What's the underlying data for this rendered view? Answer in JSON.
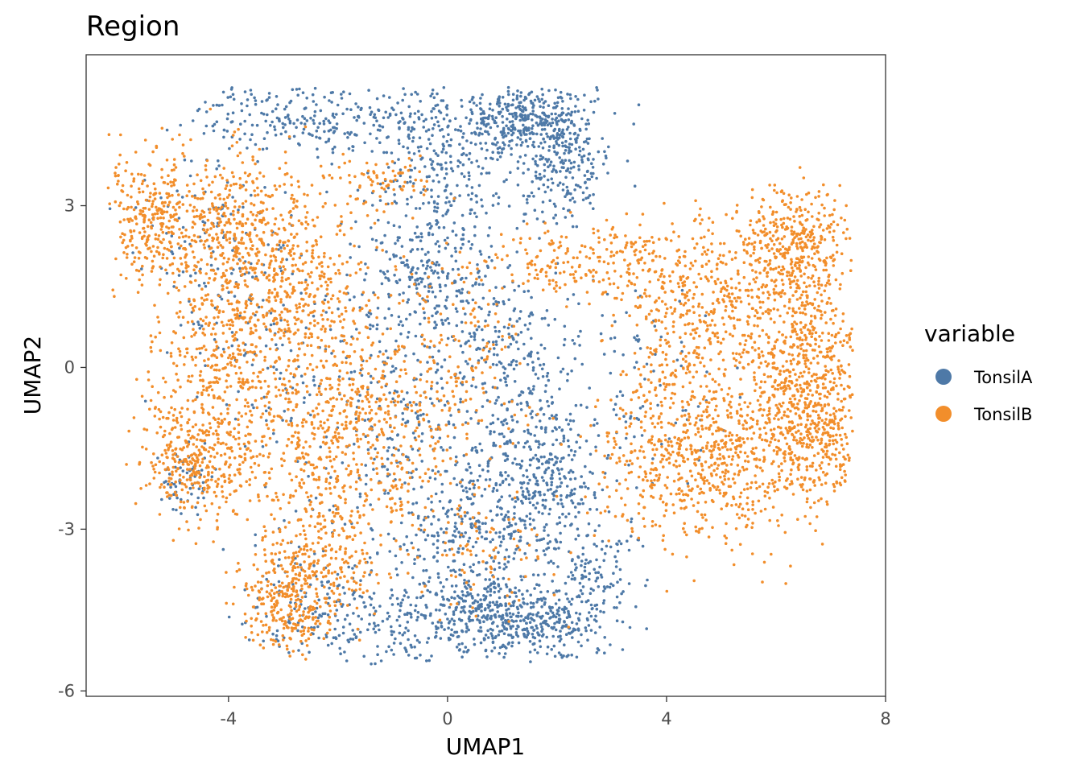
{
  "chart_data": {
    "type": "scatter",
    "title": "Region",
    "xlabel": "UMAP1",
    "ylabel": "UMAP2",
    "xlim": [
      -6.6,
      8.0
    ],
    "ylim": [
      -6.1,
      5.8
    ],
    "x_ticks": [
      {
        "value": -4,
        "label": "-4"
      },
      {
        "value": 0,
        "label": "0"
      },
      {
        "value": 4,
        "label": "4"
      },
      {
        "value": 8,
        "label": "8"
      }
    ],
    "y_ticks": [
      {
        "value": -6,
        "label": "-6"
      },
      {
        "value": -3,
        "label": "-3"
      },
      {
        "value": 0,
        "label": "0"
      },
      {
        "value": 3,
        "label": "3"
      }
    ],
    "grid": false,
    "legend": {
      "title": "variable",
      "placement": "right",
      "entries": [
        {
          "name": "TonsilA",
          "color": "#4e79a7"
        },
        {
          "name": "TonsilB",
          "color": "#f28e2b"
        }
      ]
    },
    "series": [
      {
        "name": "TonsilA",
        "color": "#4e79a7",
        "clusters": [
          {
            "cx": 1.4,
            "cy": 4.6,
            "sx": 0.65,
            "sy": 0.35,
            "weight": 360
          },
          {
            "cx": 2.1,
            "cy": 3.9,
            "sx": 0.45,
            "sy": 0.6,
            "weight": 240
          },
          {
            "cx": -2.8,
            "cy": 4.7,
            "sx": 0.9,
            "sy": 0.35,
            "weight": 220
          },
          {
            "cx": -0.6,
            "cy": 4.5,
            "sx": 0.8,
            "sy": 0.45,
            "weight": 160
          },
          {
            "cx": 0.2,
            "cy": 3.4,
            "sx": 0.6,
            "sy": 0.55,
            "weight": 150
          },
          {
            "cx": -0.3,
            "cy": 1.9,
            "sx": 0.55,
            "sy": 0.7,
            "weight": 230
          },
          {
            "cx": 1.0,
            "cy": 0.2,
            "sx": 0.8,
            "sy": 0.8,
            "weight": 260
          },
          {
            "cx": 1.8,
            "cy": -1.6,
            "sx": 0.55,
            "sy": 0.9,
            "weight": 220
          },
          {
            "cx": 1.1,
            "cy": -2.5,
            "sx": 0.9,
            "sy": 0.6,
            "weight": 240
          },
          {
            "cx": 0.8,
            "cy": -4.6,
            "sx": 0.6,
            "sy": 0.35,
            "weight": 300
          },
          {
            "cx": 1.9,
            "cy": -4.7,
            "sx": 0.55,
            "sy": 0.35,
            "weight": 220
          },
          {
            "cx": 2.6,
            "cy": -3.7,
            "sx": 0.4,
            "sy": 0.5,
            "weight": 120
          },
          {
            "cx": -1.0,
            "cy": -4.7,
            "sx": 0.9,
            "sy": 0.5,
            "weight": 190
          },
          {
            "cx": 0.3,
            "cy": -3.4,
            "sx": 0.6,
            "sy": 0.6,
            "weight": 160
          },
          {
            "cx": -4.8,
            "cy": -2.1,
            "sx": 0.25,
            "sy": 0.3,
            "weight": 60
          },
          {
            "cx": -2.0,
            "cy": 0.5,
            "sx": 1.2,
            "sy": 1.2,
            "weight": 220
          },
          {
            "cx": -4.2,
            "cy": 2.2,
            "sx": 0.7,
            "sy": 0.9,
            "weight": 130
          },
          {
            "cx": -2.6,
            "cy": -4.2,
            "sx": 0.6,
            "sy": 0.6,
            "weight": 110
          },
          {
            "cx": -0.7,
            "cy": -1.5,
            "sx": 0.8,
            "sy": 0.8,
            "weight": 150
          },
          {
            "cx": 3.8,
            "cy": -0.5,
            "sx": 0.7,
            "sy": 1.0,
            "weight": 70
          }
        ]
      },
      {
        "name": "TonsilB",
        "color": "#f28e2b",
        "clusters": [
          {
            "cx": -5.4,
            "cy": 2.8,
            "sx": 0.45,
            "sy": 0.55,
            "weight": 260
          },
          {
            "cx": -3.8,
            "cy": 2.6,
            "sx": 0.8,
            "sy": 0.7,
            "weight": 480
          },
          {
            "cx": -3.0,
            "cy": 1.0,
            "sx": 0.9,
            "sy": 0.8,
            "weight": 500
          },
          {
            "cx": -4.4,
            "cy": -0.6,
            "sx": 0.6,
            "sy": 0.9,
            "weight": 300
          },
          {
            "cx": -4.6,
            "cy": -1.9,
            "sx": 0.5,
            "sy": 0.5,
            "weight": 250
          },
          {
            "cx": -2.3,
            "cy": -1.3,
            "sx": 0.9,
            "sy": 0.9,
            "weight": 420
          },
          {
            "cx": -2.9,
            "cy": -4.3,
            "sx": 0.45,
            "sy": 0.5,
            "weight": 300
          },
          {
            "cx": -2.2,
            "cy": -3.5,
            "sx": 0.6,
            "sy": 0.6,
            "weight": 200
          },
          {
            "cx": -1.2,
            "cy": 3.4,
            "sx": 0.45,
            "sy": 0.25,
            "weight": 80
          },
          {
            "cx": -1.0,
            "cy": -1.0,
            "sx": 0.8,
            "sy": 0.9,
            "weight": 220
          },
          {
            "cx": 0.3,
            "cy": 0.5,
            "sx": 0.6,
            "sy": 0.9,
            "weight": 130
          },
          {
            "cx": 2.5,
            "cy": 2.0,
            "sx": 0.8,
            "sy": 0.3,
            "weight": 180
          },
          {
            "cx": 4.8,
            "cy": 1.6,
            "sx": 0.9,
            "sy": 0.6,
            "weight": 300
          },
          {
            "cx": 6.3,
            "cy": 2.2,
            "sx": 0.6,
            "sy": 0.6,
            "weight": 380
          },
          {
            "cx": 6.4,
            "cy": 0.0,
            "sx": 0.65,
            "sy": 0.9,
            "weight": 600
          },
          {
            "cx": 5.0,
            "cy": -1.8,
            "sx": 0.9,
            "sy": 0.8,
            "weight": 560
          },
          {
            "cx": 6.8,
            "cy": -1.2,
            "sx": 0.4,
            "sy": 0.6,
            "weight": 220
          },
          {
            "cx": 3.6,
            "cy": -1.5,
            "sx": 0.5,
            "sy": 0.9,
            "weight": 160
          },
          {
            "cx": 4.3,
            "cy": 0.4,
            "sx": 0.6,
            "sy": 0.7,
            "weight": 180
          },
          {
            "cx": 0.7,
            "cy": -3.4,
            "sx": 0.6,
            "sy": 0.6,
            "weight": 90
          }
        ]
      }
    ]
  }
}
